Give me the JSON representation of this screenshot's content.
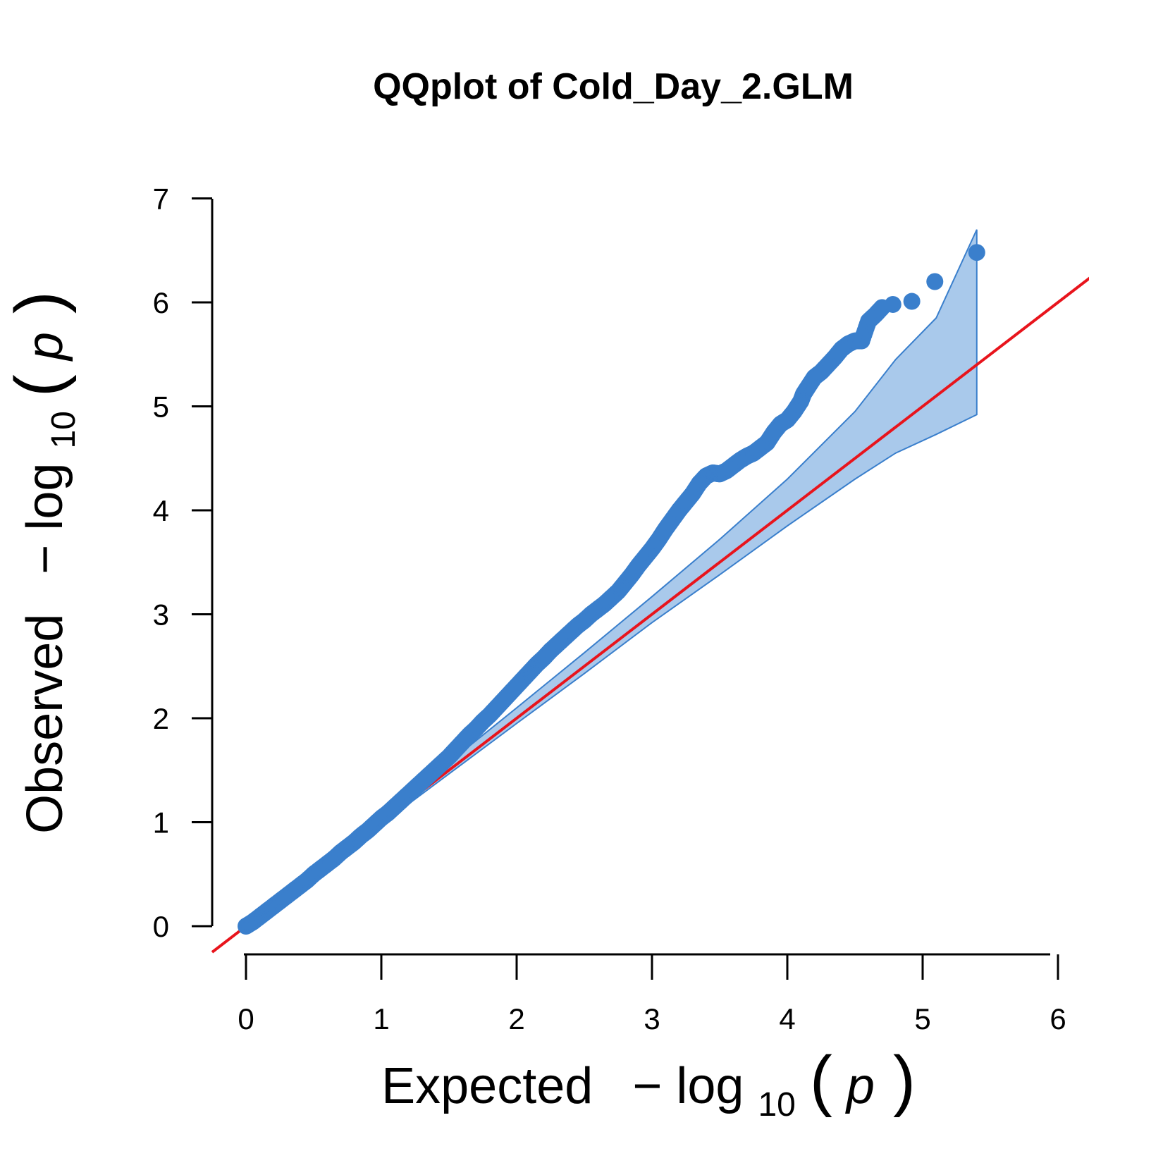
{
  "chart_data": {
    "type": "scatter",
    "title": "QQplot of Cold_Day_2.GLM",
    "xlabel": {
      "prefix": "Expected",
      "minus": "−",
      "log": "log",
      "base": "10",
      "open": "(",
      "var": "p",
      "close": ")"
    },
    "ylabel": {
      "prefix": "Observed",
      "minus": "−",
      "log": "log",
      "base": "10",
      "open": "(",
      "var": "p",
      "close": ")"
    },
    "xlim": [
      0,
      6
    ],
    "ylim": [
      0,
      7
    ],
    "x_ticks": [
      "0",
      "1",
      "2",
      "3",
      "4",
      "5",
      "6"
    ],
    "y_ticks": [
      "0",
      "1",
      "2",
      "3",
      "4",
      "5",
      "6",
      "7"
    ],
    "point_color": "#3a7fcc",
    "band_fill": "#a9c9eb",
    "band_line": "#3a7fcc",
    "line_color": "#e8141c",
    "reference_line": {
      "slope": 1,
      "intercept": 0
    },
    "confidence_band": {
      "x": [
        0,
        1,
        2,
        2.5,
        3,
        3.5,
        4,
        4.5,
        4.8,
        5.1,
        5.4
      ],
      "upper": [
        0,
        1.05,
        2.1,
        2.63,
        3.17,
        3.72,
        4.3,
        4.95,
        5.45,
        5.85,
        6.7
      ],
      "lower": [
        0,
        0.98,
        1.95,
        2.43,
        2.92,
        3.38,
        3.85,
        4.3,
        4.55,
        4.73,
        4.92
      ]
    },
    "series": [
      {
        "x": [
          0,
          0.05,
          0.1,
          0.15,
          0.2,
          0.25,
          0.3,
          0.35,
          0.4,
          0.45,
          0.5,
          0.55,
          0.6,
          0.65,
          0.7,
          0.75,
          0.8,
          0.85,
          0.9,
          0.95,
          1.0,
          1.05,
          1.1,
          1.15,
          1.2,
          1.25,
          1.3,
          1.35,
          1.4,
          1.45,
          1.5,
          1.55,
          1.6,
          1.65,
          1.7,
          1.75,
          1.8,
          1.85,
          1.9,
          1.95,
          2.0,
          2.05,
          2.1,
          2.15,
          2.2,
          2.25,
          2.3,
          2.35,
          2.4,
          2.45,
          2.5,
          2.55,
          2.6,
          2.65,
          2.7,
          2.75,
          2.8,
          2.85,
          2.9,
          2.95,
          3.0,
          3.05,
          3.1,
          3.15,
          3.2,
          3.25,
          3.3,
          3.35,
          3.4,
          3.45,
          3.5,
          3.55,
          3.6,
          3.65,
          3.7,
          3.75,
          3.8,
          3.85,
          3.9,
          3.95,
          4.0,
          4.05,
          4.1,
          4.12,
          4.15,
          4.2,
          4.25,
          4.3,
          4.35,
          4.4,
          4.45,
          4.5,
          4.55,
          4.6,
          4.65,
          4.7,
          4.78,
          4.92,
          5.09,
          5.4
        ],
        "y": [
          0,
          0.04,
          0.09,
          0.14,
          0.19,
          0.24,
          0.29,
          0.34,
          0.39,
          0.44,
          0.5,
          0.55,
          0.6,
          0.65,
          0.71,
          0.76,
          0.81,
          0.87,
          0.92,
          0.98,
          1.04,
          1.09,
          1.15,
          1.21,
          1.27,
          1.33,
          1.39,
          1.45,
          1.51,
          1.57,
          1.63,
          1.7,
          1.77,
          1.84,
          1.9,
          1.97,
          2.03,
          2.1,
          2.17,
          2.24,
          2.31,
          2.38,
          2.45,
          2.52,
          2.58,
          2.65,
          2.71,
          2.77,
          2.83,
          2.89,
          2.94,
          3.0,
          3.05,
          3.1,
          3.16,
          3.22,
          3.3,
          3.38,
          3.47,
          3.55,
          3.63,
          3.72,
          3.82,
          3.91,
          4.0,
          4.08,
          4.16,
          4.26,
          4.33,
          4.36,
          4.35,
          4.38,
          4.43,
          4.48,
          4.52,
          4.55,
          4.6,
          4.65,
          4.75,
          4.83,
          4.87,
          4.95,
          5.05,
          5.12,
          5.18,
          5.28,
          5.33,
          5.4,
          5.47,
          5.55,
          5.6,
          5.63,
          5.63,
          5.82,
          5.88,
          5.95,
          5.98,
          6.01,
          6.2,
          6.48
        ]
      }
    ]
  }
}
